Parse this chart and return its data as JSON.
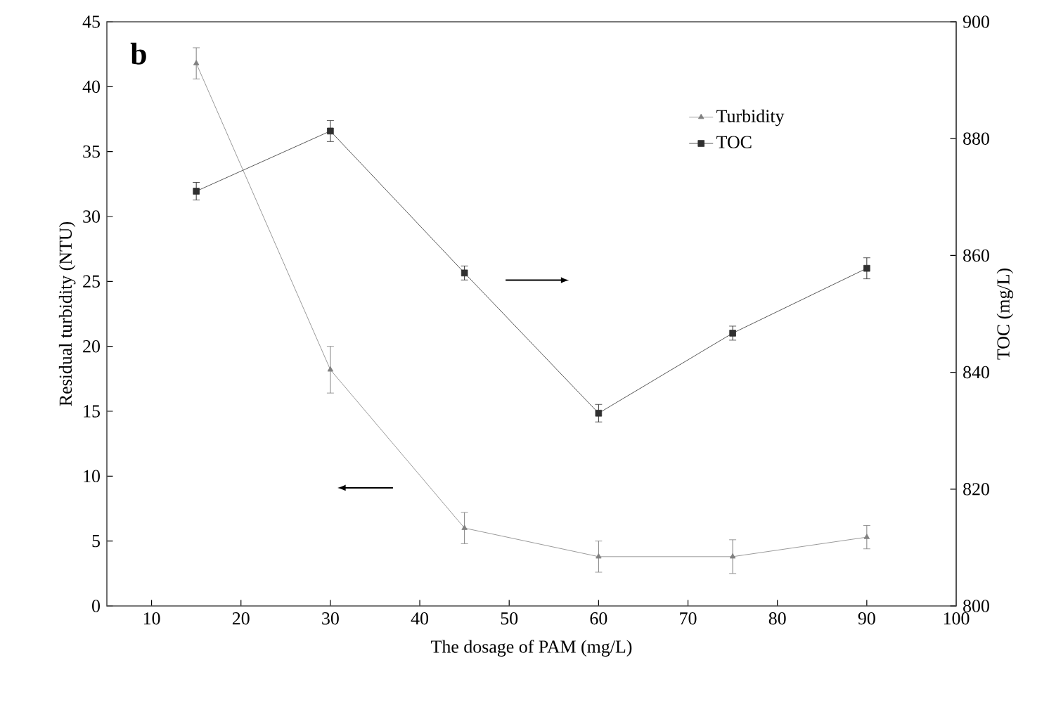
{
  "chart_data": {
    "type": "line",
    "xlabel": "The dosage of PAM (mg/L)",
    "ylabel": "Residual turbidity (NTU)",
    "y2label": "TOC (mg/L)",
    "x": [
      15,
      30,
      45,
      60,
      75,
      90
    ],
    "series": [
      {
        "name": "Turbidity",
        "color": "#808080",
        "marker": "triangle",
        "values": [
          41.8,
          18.2,
          6.0,
          3.8,
          3.8,
          5.3
        ],
        "errors": [
          1.2,
          1.8,
          1.2,
          1.2,
          1.3,
          0.9
        ]
      },
      {
        "name": "TOC",
        "color": "#303030",
        "marker": "square",
        "axis": "y2",
        "values": [
          871,
          881.3,
          857,
          833,
          846.7,
          857.8
        ],
        "errors": [
          1.5,
          1.8,
          1.2,
          1.5,
          1.2,
          1.8
        ]
      }
    ],
    "xlim": [
      5,
      100
    ],
    "xticks": [
      10,
      20,
      30,
      40,
      50,
      60,
      70,
      80,
      90,
      100
    ],
    "ylim": [
      0,
      45
    ],
    "yticks": [
      0,
      5,
      10,
      15,
      20,
      25,
      30,
      35,
      40,
      45
    ],
    "y2lim": [
      800,
      900
    ],
    "y2ticks": [
      800,
      820,
      840,
      860,
      880,
      900
    ],
    "legend": "top right",
    "line_style": "solid",
    "annotations": [
      "b"
    ]
  }
}
